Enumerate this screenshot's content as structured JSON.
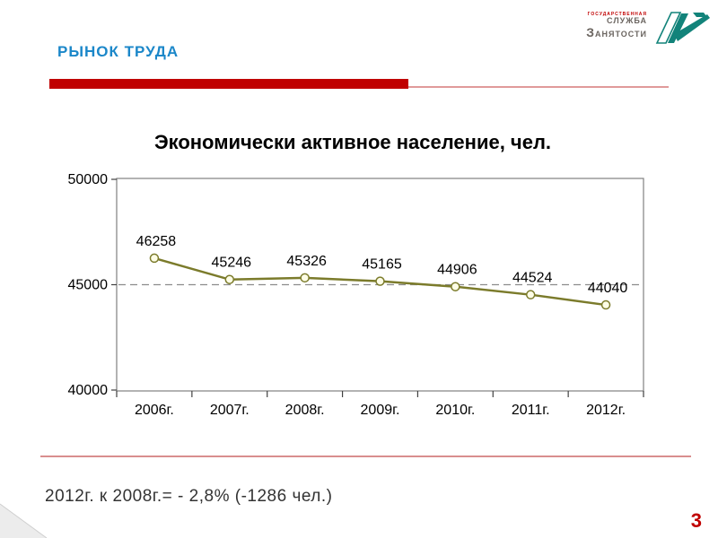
{
  "header": {
    "title": "РЫНОК ТРУДА",
    "logo": {
      "line1": "ГОСУДАРСТВЕННАЯ",
      "line2": "СЛУЖБА",
      "line3_initial": "З",
      "line3_rest": "АНЯТОСТИ"
    }
  },
  "colors": {
    "accent_red": "#c00000",
    "title_blue": "#1b87c9",
    "series_line": "#7b7b2b",
    "marker_fill": "#fdfde6",
    "logo_teal": "#12837a",
    "divider_pink": "#d98e8e",
    "plot_border": "#808080",
    "dashed_gridline": "#8c8c8c"
  },
  "chart_data": {
    "type": "line",
    "title": "Экономически активное население, чел.",
    "categories": [
      "2006г.",
      "2007г.",
      "2008г.",
      "2009г.",
      "2010г.",
      "2011г.",
      "2012г."
    ],
    "series": [
      {
        "name": "Экономически активное население",
        "values": [
          46258,
          45246,
          45326,
          45165,
          44906,
          44524,
          44040
        ]
      }
    ],
    "ylim": [
      40000,
      50000
    ],
    "yticks": [
      50000,
      45000,
      40000
    ],
    "gridline_at": 45000,
    "grid": "single dashed horizontal line at 45000",
    "legend_position": "none",
    "data_labels": true
  },
  "footer": {
    "note": "2012г. к 2008г.= - 2,8% (-1286 чел.)",
    "page_number": "3"
  }
}
